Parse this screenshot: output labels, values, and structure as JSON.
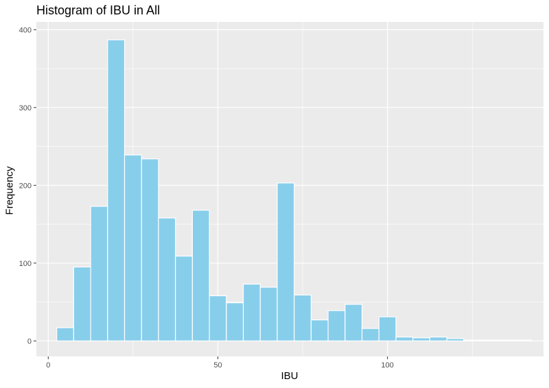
{
  "chart_data": {
    "type": "bar",
    "title": "Histogram of IBU in All",
    "xlabel": "IBU",
    "ylabel": "Frequency",
    "xlim": [
      -3.5,
      146
    ],
    "ylim": [
      -20,
      410
    ],
    "x_ticks": [
      0,
      50,
      100
    ],
    "y_ticks": [
      0,
      100,
      200,
      300,
      400
    ],
    "grid": true,
    "bin_width": 5,
    "bin_starts": [
      2.5,
      7.5,
      12.5,
      17.5,
      22.5,
      27.5,
      32.5,
      37.5,
      42.5,
      47.5,
      52.5,
      57.5,
      62.5,
      67.5,
      72.5,
      77.5,
      82.5,
      87.5,
      92.5,
      97.5,
      102.5,
      107.5,
      112.5,
      117.5,
      122.5,
      127.5,
      132.5,
      137.5
    ],
    "values": [
      17,
      95,
      173,
      387,
      239,
      234,
      158,
      109,
      168,
      58,
      49,
      73,
      69,
      203,
      59,
      27,
      39,
      47,
      16,
      31,
      5,
      4,
      5,
      3,
      1,
      1,
      1,
      1
    ],
    "colors": {
      "fill": "#87CEEB",
      "outline": "#ffffff",
      "panel": "#EBEBEB",
      "grid_major": "#ffffff"
    }
  }
}
